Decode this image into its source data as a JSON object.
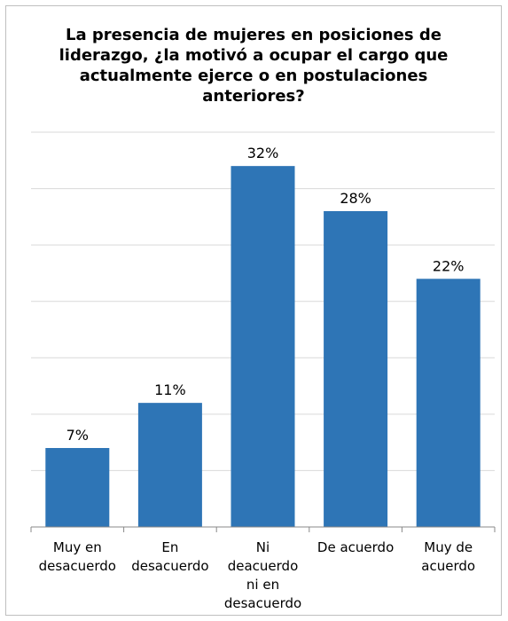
{
  "chart_data": {
    "type": "bar",
    "title_lines": [
      "La presencia de mujeres en posiciones de",
      "liderazgo, ¿la motivó a ocupar el cargo que",
      "actualmente ejerce o en postulaciones",
      "anteriores?"
    ],
    "categories": [
      [
        "Muy en",
        "desacuerdo"
      ],
      [
        "En",
        "desacuerdo"
      ],
      [
        "Ni",
        "deacuerdo",
        "ni en",
        "desacuerdo"
      ],
      [
        "De acuerdo"
      ],
      [
        "Muy de",
        "acuerdo"
      ]
    ],
    "values": [
      7,
      11,
      32,
      28,
      22
    ],
    "data_labels": [
      "7%",
      "11%",
      "32%",
      "28%",
      "22%"
    ],
    "ylim": [
      0,
      35
    ],
    "grid": true,
    "legend": "none",
    "bar_color": "#2e75b6",
    "grid_color": "#d9d9d9",
    "axis_color": "#888888"
  }
}
